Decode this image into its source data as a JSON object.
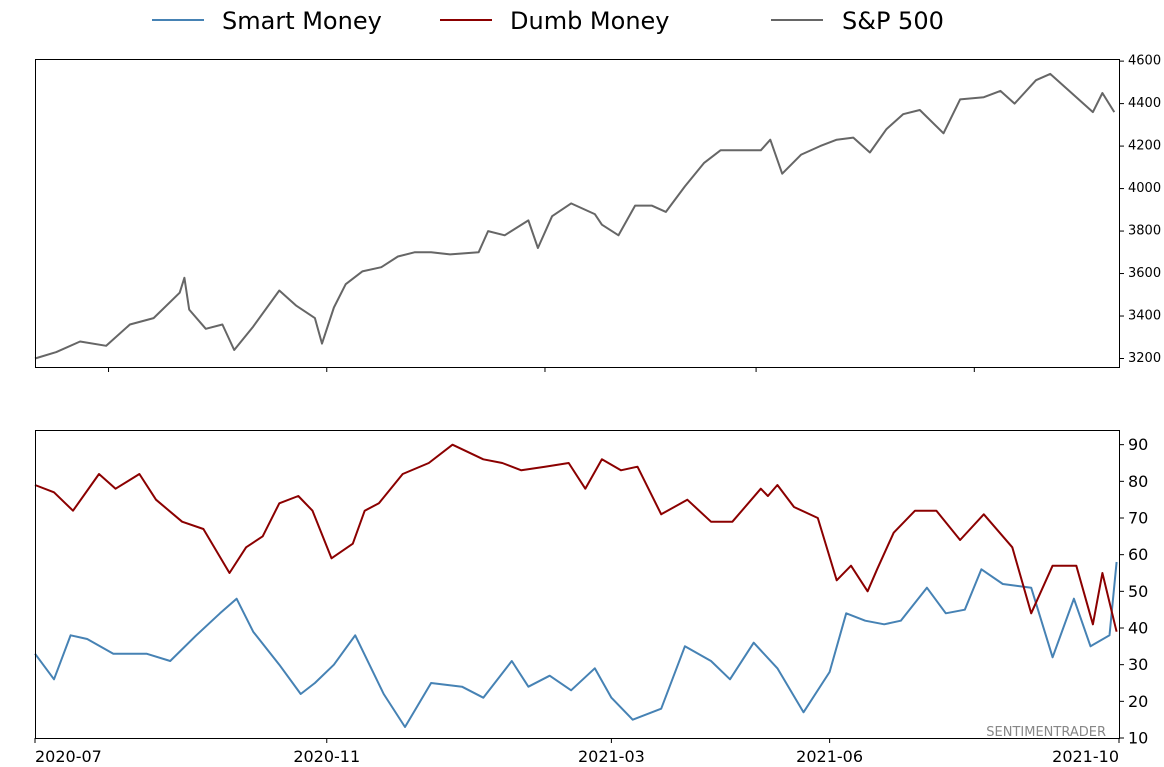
{
  "legend": {
    "items": [
      {
        "label": "Smart Money",
        "color": "#4682b4"
      },
      {
        "label": "Dumb Money",
        "color": "#8b0000"
      },
      {
        "label": "S&P 500",
        "color": "#666666"
      }
    ]
  },
  "watermark": "SENTIMENTRADER",
  "chart_data": [
    {
      "type": "line",
      "panel": "top",
      "yaxis_side": "right",
      "ylim": [
        3160,
        4610
      ],
      "yticks": [
        3200,
        3400,
        3600,
        3800,
        4000,
        4200,
        4400,
        4600
      ],
      "xlim": [
        "2020-07-01",
        "2021-10-01"
      ],
      "xticks": [
        "2020-08-01",
        "2020-11-01",
        "2021-02-01",
        "2021-05-01",
        "2021-08-01"
      ],
      "series": [
        {
          "name": "S&P 500",
          "color": "#666666",
          "x": [
            "2020-07-01",
            "2020-07-10",
            "2020-07-20",
            "2020-07-31",
            "2020-08-10",
            "2020-08-20",
            "2020-08-31",
            "2020-09-02",
            "2020-09-04",
            "2020-09-11",
            "2020-09-18",
            "2020-09-23",
            "2020-10-01",
            "2020-10-12",
            "2020-10-19",
            "2020-10-27",
            "2020-10-30",
            "2020-11-04",
            "2020-11-09",
            "2020-11-16",
            "2020-11-24",
            "2020-12-01",
            "2020-12-08",
            "2020-12-15",
            "2020-12-23",
            "2021-01-04",
            "2021-01-08",
            "2021-01-15",
            "2021-01-25",
            "2021-01-29",
            "2021-02-04",
            "2021-02-12",
            "2021-02-22",
            "2021-02-25",
            "2021-03-04",
            "2021-03-11",
            "2021-03-18",
            "2021-03-24",
            "2021-04-01",
            "2021-04-09",
            "2021-04-16",
            "2021-04-23",
            "2021-05-03",
            "2021-05-07",
            "2021-05-12",
            "2021-05-20",
            "2021-05-28",
            "2021-06-04",
            "2021-06-11",
            "2021-06-18",
            "2021-06-25",
            "2021-07-02",
            "2021-07-09",
            "2021-07-19",
            "2021-07-26",
            "2021-08-05",
            "2021-08-12",
            "2021-08-18",
            "2021-08-27",
            "2021-09-02",
            "2021-09-10",
            "2021-09-20",
            "2021-09-24",
            "2021-09-29"
          ],
          "values": [
            3200,
            3230,
            3280,
            3260,
            3360,
            3390,
            3510,
            3580,
            3430,
            3340,
            3360,
            3240,
            3350,
            3520,
            3450,
            3390,
            3270,
            3440,
            3550,
            3610,
            3630,
            3680,
            3700,
            3700,
            3690,
            3700,
            3800,
            3780,
            3850,
            3720,
            3870,
            3930,
            3880,
            3830,
            3780,
            3920,
            3920,
            3890,
            4010,
            4120,
            4180,
            4180,
            4180,
            4230,
            4070,
            4160,
            4200,
            4230,
            4240,
            4170,
            4280,
            4350,
            4370,
            4260,
            4420,
            4430,
            4460,
            4400,
            4510,
            4540,
            4460,
            4360,
            4450,
            4360
          ]
        }
      ]
    },
    {
      "type": "line",
      "panel": "bottom",
      "yaxis_side": "right",
      "ylim": [
        10,
        94
      ],
      "yticks": [
        10,
        20,
        30,
        40,
        50,
        60,
        70,
        80,
        90
      ],
      "xlim": [
        "2020-07-01",
        "2021-10-01"
      ],
      "xticks": [
        "2020-07-01",
        "2020-11-01",
        "2021-03-01",
        "2021-06-01",
        "2021-10-01"
      ],
      "xticklabels": [
        "2020-07",
        "2020-11",
        "2021-03",
        "2021-06",
        "2021-10"
      ],
      "series": [
        {
          "name": "Smart Money",
          "color": "#4682b4",
          "x": [
            "2020-07-01",
            "2020-07-09",
            "2020-07-16",
            "2020-07-23",
            "2020-08-03",
            "2020-08-17",
            "2020-08-27",
            "2020-09-07",
            "2020-09-17",
            "2020-09-24",
            "2020-10-01",
            "2020-10-12",
            "2020-10-21",
            "2020-10-27",
            "2020-11-04",
            "2020-11-13",
            "2020-11-25",
            "2020-12-04",
            "2020-12-15",
            "2020-12-28",
            "2021-01-06",
            "2021-01-18",
            "2021-01-25",
            "2021-02-03",
            "2021-02-12",
            "2021-02-22",
            "2021-03-01",
            "2021-03-10",
            "2021-03-22",
            "2021-04-01",
            "2021-04-12",
            "2021-04-20",
            "2021-04-30",
            "2021-05-10",
            "2021-05-21",
            "2021-06-01",
            "2021-06-08",
            "2021-06-16",
            "2021-06-24",
            "2021-07-01",
            "2021-07-12",
            "2021-07-20",
            "2021-07-28",
            "2021-08-04",
            "2021-08-13",
            "2021-08-25",
            "2021-09-03",
            "2021-09-12",
            "2021-09-19",
            "2021-09-27",
            "2021-09-30"
          ],
          "values": [
            33,
            26,
            38,
            37,
            33,
            33,
            31,
            38,
            44,
            48,
            39,
            30,
            22,
            25,
            30,
            38,
            22,
            13,
            25,
            24,
            21,
            31,
            24,
            27,
            23,
            29,
            21,
            15,
            18,
            35,
            31,
            26,
            36,
            29,
            17,
            28,
            44,
            42,
            41,
            42,
            51,
            44,
            45,
            56,
            52,
            51,
            32,
            48,
            35,
            38,
            58
          ]
        },
        {
          "name": "Dumb Money",
          "color": "#8b0000",
          "x": [
            "2020-07-01",
            "2020-07-09",
            "2020-07-17",
            "2020-07-28",
            "2020-08-04",
            "2020-08-14",
            "2020-08-21",
            "2020-09-01",
            "2020-09-10",
            "2020-09-21",
            "2020-09-28",
            "2020-10-05",
            "2020-10-12",
            "2020-10-20",
            "2020-10-26",
            "2020-11-03",
            "2020-11-12",
            "2020-11-17",
            "2020-11-23",
            "2020-12-03",
            "2020-12-14",
            "2020-12-24",
            "2021-01-06",
            "2021-01-14",
            "2021-01-22",
            "2021-02-01",
            "2021-02-11",
            "2021-02-18",
            "2021-02-25",
            "2021-03-05",
            "2021-03-12",
            "2021-03-22",
            "2021-04-02",
            "2021-04-12",
            "2021-04-21",
            "2021-05-03",
            "2021-05-06",
            "2021-05-10",
            "2021-05-17",
            "2021-05-27",
            "2021-06-04",
            "2021-06-10",
            "2021-06-17",
            "2021-06-21",
            "2021-06-28",
            "2021-07-07",
            "2021-07-16",
            "2021-07-26",
            "2021-08-05",
            "2021-08-17",
            "2021-08-25",
            "2021-09-03",
            "2021-09-13",
            "2021-09-20",
            "2021-09-24",
            "2021-09-30"
          ],
          "values": [
            79,
            77,
            72,
            82,
            78,
            82,
            75,
            69,
            67,
            55,
            62,
            65,
            74,
            76,
            72,
            59,
            63,
            72,
            74,
            82,
            85,
            90,
            86,
            85,
            83,
            84,
            85,
            78,
            86,
            83,
            84,
            71,
            75,
            69,
            69,
            78,
            76,
            79,
            73,
            70,
            53,
            57,
            50,
            56,
            66,
            72,
            72,
            64,
            71,
            62,
            44,
            57,
            57,
            41,
            55,
            39
          ]
        }
      ]
    }
  ]
}
